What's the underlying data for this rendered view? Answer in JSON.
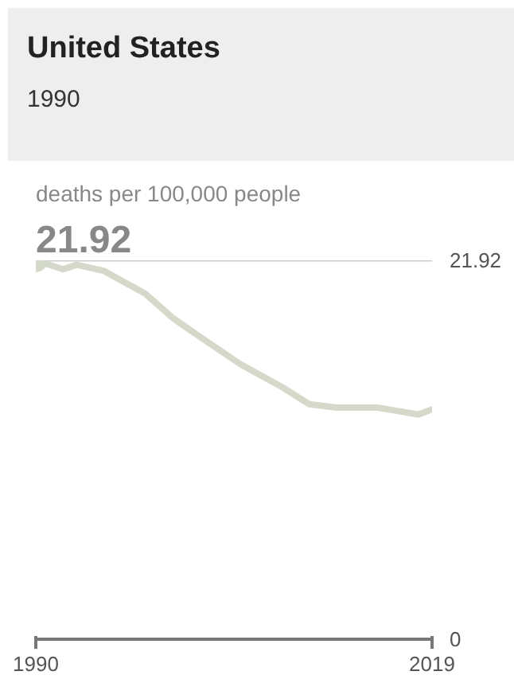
{
  "chart_data": {
    "type": "line",
    "title": "United States",
    "subtitle": "1990",
    "ylabel": "deaths per 100,000 people",
    "annotations": [
      "21.92"
    ],
    "x": [
      1990,
      1992,
      1993,
      1995,
      1998,
      2000,
      2002,
      2005,
      2008,
      2010,
      2012,
      2015,
      2018,
      2019
    ],
    "series": [
      {
        "color": "#d4d9c9",
        "values": [
          21.92,
          21.4,
          21.66,
          21.3,
          20.0,
          18.6,
          17.5,
          15.9,
          14.6,
          13.6,
          13.4,
          13.4,
          13.0,
          13.3
        ]
      },
      {
        "type": "scatter",
        "color": "#d4d9c9",
        "x": [
          1990
        ],
        "values": [
          21.92
        ],
        "marker": "circle"
      }
    ],
    "xlim": [
      1990,
      2019
    ],
    "ylim": [
      0,
      21.92
    ],
    "xticks": [
      1990,
      2019
    ],
    "yticks": [
      0,
      21.92
    ],
    "ref_lines": [
      {
        "axis": "y",
        "value": 21.92,
        "color": "#cccccc",
        "line_style": "solid"
      }
    ],
    "marker": "none"
  }
}
